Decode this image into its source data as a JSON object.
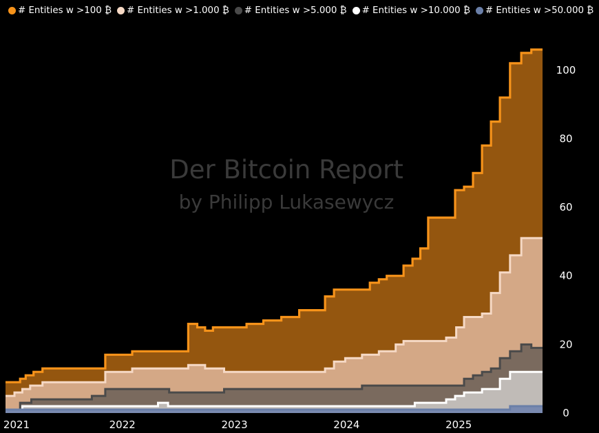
{
  "watermark": {
    "line1": "Der Bitcoin Report",
    "line2": "by Philipp Lukasewycz"
  },
  "chart_data": {
    "type": "area",
    "x_ticks": [
      "2021",
      "2022",
      "2023",
      "2024",
      "2025"
    ],
    "y_ticks": [
      "0",
      "20",
      "40",
      "60",
      "80",
      "100"
    ],
    "ylim": [
      0,
      108
    ],
    "xlim": [
      2020.97,
      2025.76
    ],
    "y_axis_position": "right",
    "legend_position": "top",
    "grid": false,
    "series": [
      {
        "name": "# Entities w >100 ₿",
        "line_color": "#f7931a",
        "fill_color": "#94560f",
        "points": [
          [
            2020.97,
            9
          ],
          [
            2021.1,
            10
          ],
          [
            2021.15,
            11
          ],
          [
            2021.22,
            12
          ],
          [
            2021.3,
            13
          ],
          [
            2021.86,
            17
          ],
          [
            2022.1,
            18
          ],
          [
            2022.6,
            26
          ],
          [
            2022.68,
            25
          ],
          [
            2022.75,
            24
          ],
          [
            2022.82,
            25
          ],
          [
            2023.12,
            26
          ],
          [
            2023.27,
            27
          ],
          [
            2023.43,
            28
          ],
          [
            2023.59,
            30
          ],
          [
            2023.82,
            34
          ],
          [
            2023.9,
            36
          ],
          [
            2024.22,
            38
          ],
          [
            2024.3,
            39
          ],
          [
            2024.37,
            40
          ],
          [
            2024.52,
            43
          ],
          [
            2024.6,
            45
          ],
          [
            2024.67,
            48
          ],
          [
            2024.74,
            57
          ],
          [
            2024.98,
            65
          ],
          [
            2025.06,
            66
          ],
          [
            2025.14,
            70
          ],
          [
            2025.22,
            78
          ],
          [
            2025.3,
            85
          ],
          [
            2025.38,
            92
          ],
          [
            2025.47,
            102
          ],
          [
            2025.57,
            105
          ],
          [
            2025.66,
            106
          ],
          [
            2025.76,
            106
          ]
        ]
      },
      {
        "name": "# Entities w >1.000 ₿",
        "line_color": "#f6d9c5",
        "fill_color": "#d4a886",
        "points": [
          [
            2020.97,
            5
          ],
          [
            2021.05,
            6
          ],
          [
            2021.12,
            7
          ],
          [
            2021.19,
            8
          ],
          [
            2021.3,
            9
          ],
          [
            2021.86,
            12
          ],
          [
            2022.1,
            13
          ],
          [
            2022.6,
            14
          ],
          [
            2022.75,
            13
          ],
          [
            2022.92,
            12
          ],
          [
            2023.82,
            13
          ],
          [
            2023.9,
            15
          ],
          [
            2024.0,
            16
          ],
          [
            2024.15,
            17
          ],
          [
            2024.3,
            18
          ],
          [
            2024.45,
            20
          ],
          [
            2024.52,
            21
          ],
          [
            2024.9,
            22
          ],
          [
            2024.99,
            25
          ],
          [
            2025.06,
            28
          ],
          [
            2025.22,
            29
          ],
          [
            2025.3,
            35
          ],
          [
            2025.38,
            41
          ],
          [
            2025.47,
            46
          ],
          [
            2025.57,
            51
          ],
          [
            2025.76,
            51
          ]
        ]
      },
      {
        "name": "# Entities w >5.000 ₿",
        "line_color": "#4a4a4a",
        "fill_color": "#7a6a5e",
        "points": [
          [
            2020.97,
            1
          ],
          [
            2021.1,
            3
          ],
          [
            2021.2,
            4
          ],
          [
            2021.74,
            5
          ],
          [
            2021.86,
            7
          ],
          [
            2022.43,
            6
          ],
          [
            2022.92,
            7
          ],
          [
            2024.15,
            8
          ],
          [
            2025.06,
            10
          ],
          [
            2025.14,
            11
          ],
          [
            2025.22,
            12
          ],
          [
            2025.3,
            13
          ],
          [
            2025.38,
            16
          ],
          [
            2025.47,
            18
          ],
          [
            2025.57,
            20
          ],
          [
            2025.66,
            19
          ],
          [
            2025.76,
            19
          ]
        ]
      },
      {
        "name": "# Entities w >10.000 ₿",
        "line_color": "#ffffff",
        "fill_color": "#c0bbb7",
        "points": [
          [
            2020.97,
            1
          ],
          [
            2021.12,
            2
          ],
          [
            2022.33,
            3
          ],
          [
            2022.42,
            2
          ],
          [
            2024.22,
            2
          ],
          [
            2024.62,
            3
          ],
          [
            2024.9,
            4
          ],
          [
            2024.98,
            5
          ],
          [
            2025.06,
            6
          ],
          [
            2025.22,
            7
          ],
          [
            2025.38,
            10
          ],
          [
            2025.47,
            12
          ],
          [
            2025.76,
            12
          ]
        ]
      },
      {
        "name": "# Entities w >50.000 ₿",
        "line_color": "#6a7fa8",
        "fill_color": "#7a8ab0",
        "points": [
          [
            2020.97,
            1
          ],
          [
            2025.3,
            1
          ],
          [
            2025.47,
            2
          ],
          [
            2025.76,
            2
          ]
        ]
      }
    ]
  }
}
